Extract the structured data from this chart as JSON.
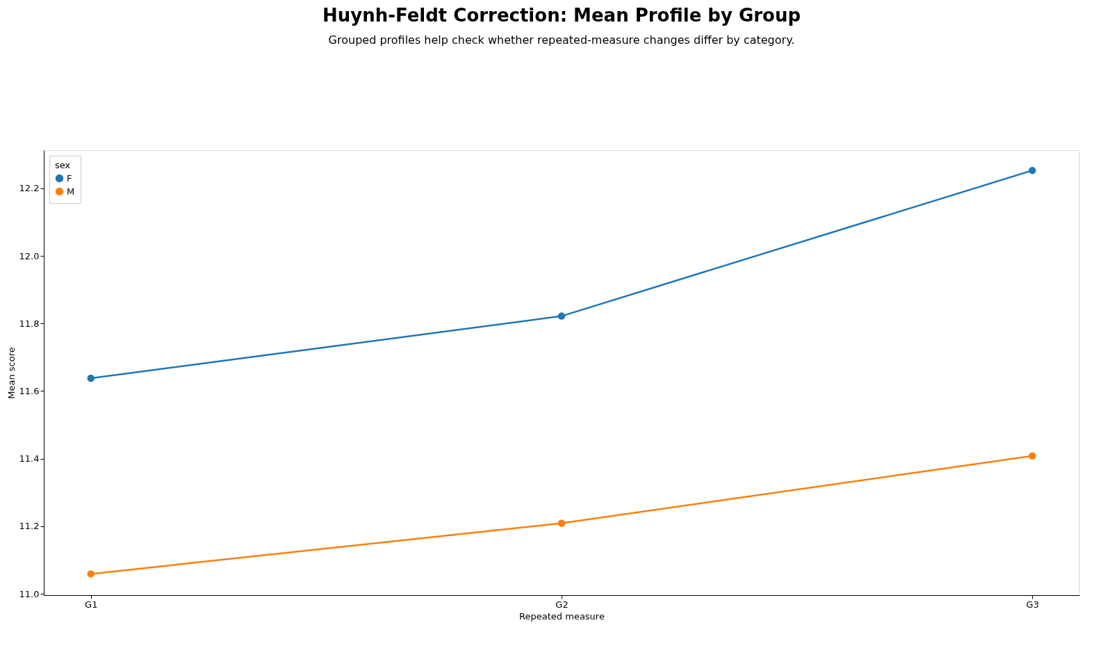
{
  "chart_data": {
    "type": "line",
    "title": "Huynh-Feldt Correction: Mean Profile by Group",
    "subtitle": "Grouped profiles help check whether repeated-measure changes differ by category.",
    "xlabel": "Repeated measure",
    "ylabel": "Mean score",
    "legend_title": "sex",
    "categories": [
      "G1",
      "G2",
      "G3"
    ],
    "series": [
      {
        "name": "F",
        "color": "#1f77b4",
        "values": [
          11.638,
          11.822,
          12.253
        ]
      },
      {
        "name": "M",
        "color": "#ff7f0e",
        "values": [
          11.059,
          11.209,
          11.408
        ]
      }
    ],
    "ylim": [
      10.996,
      12.313
    ],
    "yticks": [
      {
        "value": 11.0,
        "label": "11.0"
      },
      {
        "value": 11.2,
        "label": "11.2"
      },
      {
        "value": 11.4,
        "label": "11.4"
      },
      {
        "value": 11.6,
        "label": "11.6"
      },
      {
        "value": 11.8,
        "label": "11.8"
      },
      {
        "value": 12.0,
        "label": "12.0"
      },
      {
        "value": 12.2,
        "label": "12.2"
      }
    ],
    "grid": false,
    "legend": "top left",
    "marker": "circle",
    "line_style": "solid"
  }
}
